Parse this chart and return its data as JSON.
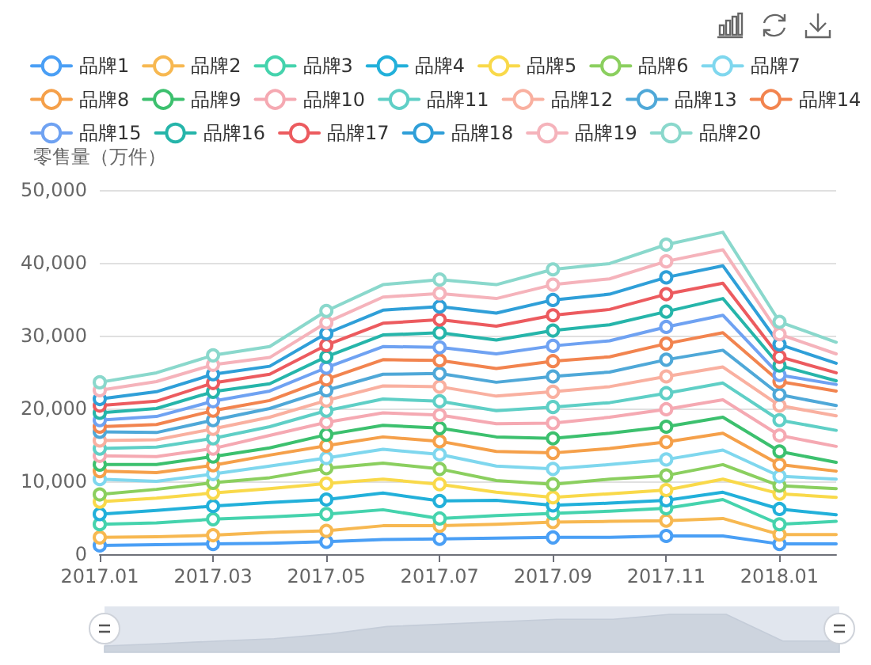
{
  "chart_data": {
    "type": "line",
    "ylabel": "零售量（万件）",
    "categories": [
      "2017.01",
      null,
      "2017.03",
      null,
      "2017.05",
      null,
      "2017.07",
      null,
      "2017.09",
      null,
      "2017.11",
      null,
      "2018.01",
      null
    ],
    "series": [
      {
        "name": "品牌1",
        "color": "#4a9ff5",
        "values": [
          1200,
          1300,
          1400,
          1500,
          1700,
          2000,
          2100,
          2200,
          2300,
          2300,
          2500,
          2500,
          1400,
          1400
        ]
      },
      {
        "name": "品牌2",
        "color": "#f7b851",
        "values": [
          2300,
          2400,
          2600,
          3000,
          3200,
          3900,
          3900,
          4100,
          4400,
          4500,
          4600,
          4900,
          2700,
          2700
        ]
      },
      {
        "name": "品牌3",
        "color": "#45d3ad",
        "values": [
          4100,
          4300,
          4800,
          5100,
          5500,
          6100,
          4900,
          5300,
          5600,
          5900,
          6300,
          7500,
          4100,
          4500
        ]
      },
      {
        "name": "品牌4",
        "color": "#22b0da",
        "values": [
          5500,
          6000,
          6600,
          7100,
          7500,
          8400,
          7300,
          7400,
          6700,
          7000,
          7400,
          8500,
          6200,
          5400
        ]
      },
      {
        "name": "品牌5",
        "color": "#f9d94a",
        "values": [
          7200,
          7700,
          8400,
          9000,
          9700,
          10300,
          9600,
          8500,
          7800,
          8300,
          8800,
          10300,
          8300,
          7800
        ]
      },
      {
        "name": "品牌6",
        "color": "#8bcf5f",
        "values": [
          8200,
          8900,
          9800,
          10500,
          11800,
          12500,
          11700,
          10100,
          9600,
          10300,
          10800,
          12300,
          9400,
          9000
        ]
      },
      {
        "name": "品牌7",
        "color": "#7fd7ee",
        "values": [
          10300,
          10000,
          11000,
          12100,
          13200,
          14400,
          13700,
          12100,
          11700,
          12300,
          13000,
          14300,
          10700,
          10300
        ]
      },
      {
        "name": "品牌8",
        "color": "#f5a04a",
        "values": [
          11400,
          11200,
          12200,
          13600,
          14900,
          16100,
          15500,
          14100,
          13900,
          14500,
          15400,
          16600,
          12300,
          11400
        ]
      },
      {
        "name": "品牌9",
        "color": "#3cc06e",
        "values": [
          12300,
          12300,
          13400,
          14600,
          16400,
          17700,
          17300,
          16100,
          15900,
          16600,
          17500,
          18800,
          14100,
          12600
        ]
      },
      {
        "name": "品牌10",
        "color": "#f5a9b2",
        "values": [
          13500,
          13400,
          14500,
          16300,
          18100,
          19400,
          19100,
          17900,
          18000,
          18800,
          19900,
          21200,
          16300,
          14800
        ]
      },
      {
        "name": "品牌11",
        "color": "#5fcfc6",
        "values": [
          14500,
          14700,
          15900,
          17500,
          19700,
          21300,
          21000,
          19700,
          20200,
          20800,
          22100,
          23500,
          18400,
          17000
        ]
      },
      {
        "name": "品牌12",
        "color": "#f9b0a0",
        "values": [
          15600,
          15700,
          17200,
          18800,
          21100,
          23100,
          23000,
          21700,
          22300,
          23000,
          24400,
          25700,
          20400,
          19000
        ]
      },
      {
        "name": "品牌13",
        "color": "#4fa8d8",
        "values": [
          16800,
          16700,
          18400,
          20000,
          22500,
          24700,
          24800,
          23600,
          24400,
          25000,
          26700,
          28000,
          21900,
          20400
        ]
      },
      {
        "name": "品牌14",
        "color": "#f2844f",
        "values": [
          17500,
          17800,
          19700,
          21100,
          24000,
          26700,
          26600,
          25500,
          26500,
          27100,
          28900,
          30400,
          23700,
          22400
        ]
      },
      {
        "name": "品牌15",
        "color": "#6fa2f2",
        "values": [
          18400,
          18900,
          21000,
          22400,
          25600,
          28500,
          28400,
          27500,
          28600,
          29300,
          31200,
          32800,
          24600,
          23300
        ]
      },
      {
        "name": "品牌16",
        "color": "#26b5aa",
        "values": [
          19400,
          20000,
          22300,
          23400,
          27100,
          30100,
          30400,
          29400,
          30700,
          31500,
          33300,
          35100,
          25900,
          23800
        ]
      },
      {
        "name": "品牌17",
        "color": "#ec5b5f",
        "values": [
          20400,
          21000,
          23500,
          24700,
          28700,
          31700,
          32200,
          31300,
          32800,
          33600,
          35700,
          37200,
          27100,
          24900
        ]
      },
      {
        "name": "品牌18",
        "color": "#2f9fd8",
        "values": [
          21300,
          22300,
          24700,
          25800,
          30300,
          33500,
          34000,
          33100,
          34900,
          35700,
          38000,
          39600,
          28800,
          26200
        ]
      },
      {
        "name": "品牌19",
        "color": "#f5b3bb",
        "values": [
          22500,
          23700,
          26000,
          27000,
          31800,
          35300,
          35800,
          35100,
          37000,
          37800,
          40200,
          41800,
          30200,
          27500
        ]
      },
      {
        "name": "品牌20",
        "color": "#8ad8cc",
        "values": [
          23600,
          24900,
          27300,
          28500,
          33400,
          37000,
          37700,
          37000,
          39100,
          39900,
          42500,
          44200,
          31900,
          29100
        ]
      }
    ],
    "ylim": [
      0,
      50000
    ],
    "yticks": [
      0,
      {
        "value": 10000,
        "label": "10,000"
      },
      {
        "value": 20000,
        "label": "20,000"
      },
      {
        "value": 30000,
        "label": "30,000"
      },
      {
        "value": 40000,
        "label": "40,000"
      },
      {
        "value": 50000,
        "label": "50,000"
      }
    ],
    "grid": "y",
    "legend": "top",
    "marker": "circle"
  }
}
